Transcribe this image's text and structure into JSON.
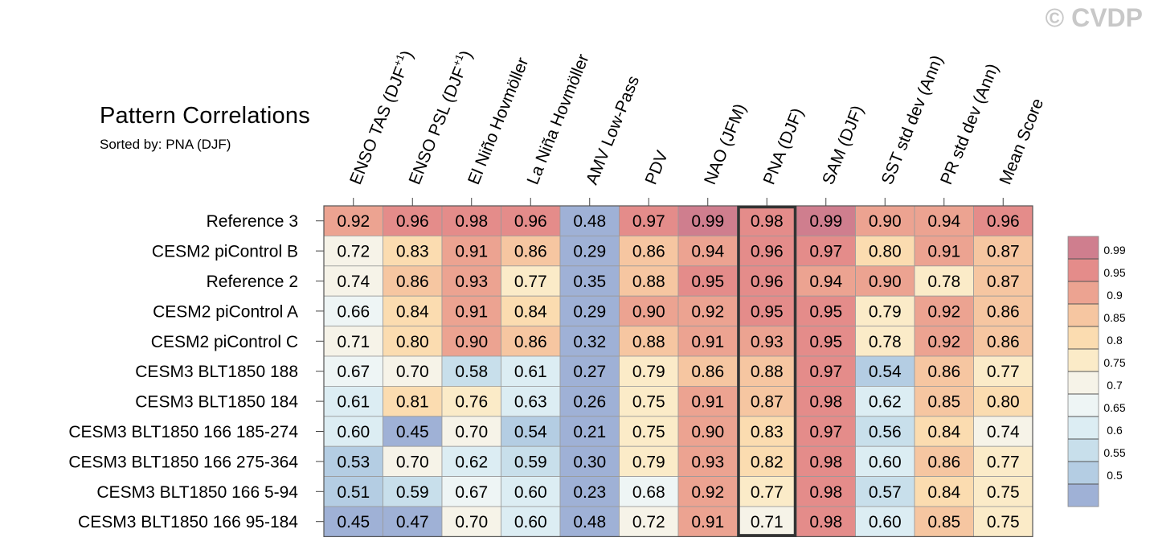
{
  "watermark": "© CVDP",
  "chart_data": {
    "type": "heatmap",
    "title": "Pattern Correlations",
    "subtitle": "Sorted by: PNA (DJF)",
    "columns": [
      {
        "label": "ENSO TAS (DJF",
        "sup": "+1",
        "suffix": ")"
      },
      {
        "label": "ENSO PSL (DJF",
        "sup": "+1",
        "suffix": ")"
      },
      {
        "label": "El Niño Hovmöller"
      },
      {
        "label": "La Niña Hovmöller"
      },
      {
        "label": "AMV Low-Pass"
      },
      {
        "label": "PDV"
      },
      {
        "label": "NAO (JFM)"
      },
      {
        "label": "PNA (DJF)"
      },
      {
        "label": "SAM (DJF)"
      },
      {
        "label": "SST std dev (Ann)"
      },
      {
        "label": "PR std dev (Ann)"
      },
      {
        "label": "Mean Score"
      }
    ],
    "rows": [
      {
        "name": "Reference 3",
        "values": [
          "0.92",
          "0.96",
          "0.98",
          "0.96",
          "0.48",
          "0.97",
          "0.99",
          "0.98",
          "0.99",
          "0.90",
          "0.94",
          "0.96"
        ]
      },
      {
        "name": "CESM2 piControl B",
        "values": [
          "0.72",
          "0.83",
          "0.91",
          "0.86",
          "0.29",
          "0.86",
          "0.94",
          "0.96",
          "0.97",
          "0.80",
          "0.91",
          "0.87"
        ]
      },
      {
        "name": "Reference 2",
        "values": [
          "0.74",
          "0.86",
          "0.93",
          "0.77",
          "0.35",
          "0.88",
          "0.95",
          "0.96",
          "0.94",
          "0.90",
          "0.78",
          "0.87"
        ]
      },
      {
        "name": "CESM2 piControl A",
        "values": [
          "0.66",
          "0.84",
          "0.91",
          "0.84",
          "0.29",
          "0.90",
          "0.92",
          "0.95",
          "0.95",
          "0.79",
          "0.92",
          "0.86"
        ]
      },
      {
        "name": "CESM2 piControl C",
        "values": [
          "0.71",
          "0.80",
          "0.90",
          "0.86",
          "0.32",
          "0.88",
          "0.91",
          "0.93",
          "0.95",
          "0.78",
          "0.92",
          "0.86"
        ]
      },
      {
        "name": "CESM3 BLT1850 188",
        "values": [
          "0.67",
          "0.70",
          "0.58",
          "0.61",
          "0.27",
          "0.79",
          "0.86",
          "0.88",
          "0.97",
          "0.54",
          "0.86",
          "0.77"
        ]
      },
      {
        "name": "CESM3 BLT1850 184",
        "values": [
          "0.61",
          "0.81",
          "0.76",
          "0.63",
          "0.26",
          "0.75",
          "0.91",
          "0.87",
          "0.98",
          "0.62",
          "0.85",
          "0.80"
        ]
      },
      {
        "name": "CESM3 BLT1850 166 185-274",
        "values": [
          "0.60",
          "0.45",
          "0.70",
          "0.54",
          "0.21",
          "0.75",
          "0.90",
          "0.83",
          "0.97",
          "0.56",
          "0.84",
          "0.74"
        ]
      },
      {
        "name": "CESM3 BLT1850 166 275-364",
        "values": [
          "0.53",
          "0.70",
          "0.62",
          "0.59",
          "0.30",
          "0.79",
          "0.93",
          "0.82",
          "0.98",
          "0.60",
          "0.86",
          "0.77"
        ]
      },
      {
        "name": "CESM3 BLT1850 166 5-94",
        "values": [
          "0.51",
          "0.59",
          "0.67",
          "0.60",
          "0.23",
          "0.68",
          "0.92",
          "0.77",
          "0.98",
          "0.57",
          "0.84",
          "0.75"
        ]
      },
      {
        "name": "CESM3 BLT1850 166 95-184",
        "values": [
          "0.45",
          "0.47",
          "0.70",
          "0.60",
          "0.48",
          "0.72",
          "0.91",
          "0.71",
          "0.98",
          "0.60",
          "0.85",
          "0.75"
        ]
      }
    ],
    "highlight_column": "PNA (DJF)",
    "colorbar": {
      "tick_labels": [
        "0.99",
        "0.95",
        "0.9",
        "0.85",
        "0.8",
        "0.75",
        "0.7",
        "0.65",
        "0.6",
        "0.55",
        "0.5"
      ],
      "thresholds": [
        0.5,
        0.55,
        0.6,
        0.65,
        0.7,
        0.75,
        0.8,
        0.85,
        0.9,
        0.95,
        0.99
      ],
      "colors": [
        "#9fb1d6",
        "#b4cde3",
        "#c8dfeb",
        "#dcedf3",
        "#eef5f5",
        "#f6f3e8",
        "#fbebc8",
        "#fbdcb0",
        "#f6c6a1",
        "#eca391",
        "#e48c8a",
        "#cf7e8e"
      ]
    }
  }
}
